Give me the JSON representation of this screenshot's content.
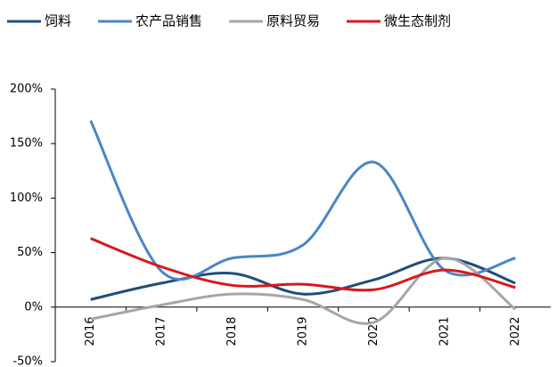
{
  "chart_data": {
    "type": "line",
    "categories": [
      "2016",
      "2017",
      "2018",
      "2019",
      "2020",
      "2021",
      "2022"
    ],
    "series": [
      {
        "name": "饲料",
        "color": "#1f4e79",
        "values": [
          7,
          22,
          31,
          12,
          25,
          45,
          22
        ]
      },
      {
        "name": "农产品销售",
        "color": "#4a86c5",
        "values": [
          171,
          33,
          45,
          57,
          133,
          34,
          45
        ]
      },
      {
        "name": "原料贸易",
        "color": "#a6a6a6",
        "values": [
          -11,
          2,
          12,
          7,
          -14,
          45,
          -2
        ]
      },
      {
        "name": "微生态制剂",
        "color": "#d7191c",
        "values": [
          63,
          37,
          20,
          21,
          16,
          34,
          18
        ]
      }
    ],
    "ylim": [
      -50,
      200
    ],
    "yticks": [
      {
        "value": -50,
        "label": "-50%"
      },
      {
        "value": 0,
        "label": "0%"
      },
      {
        "value": 50,
        "label": "50%"
      },
      {
        "value": 100,
        "label": "100%"
      },
      {
        "value": 150,
        "label": "150%"
      },
      {
        "value": 200,
        "label": "200%"
      }
    ],
    "smooth": true,
    "legend": "top"
  }
}
